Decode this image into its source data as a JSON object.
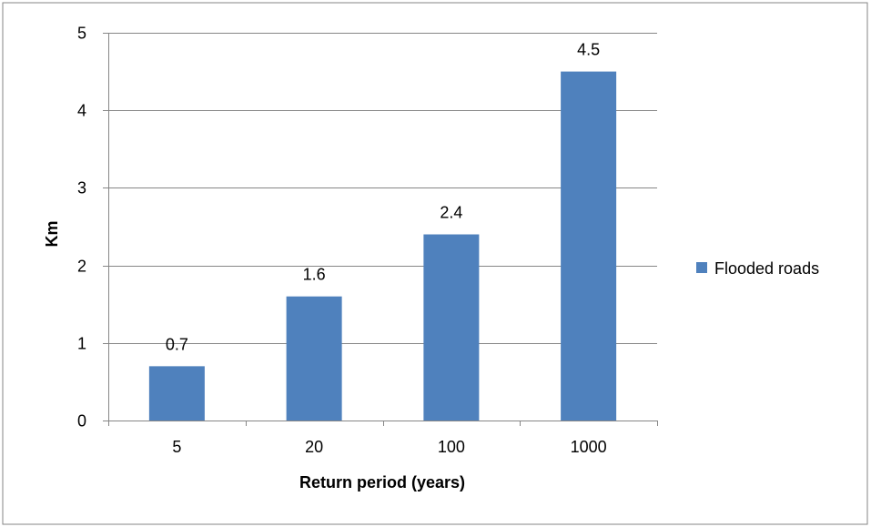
{
  "chart_data": {
    "type": "bar",
    "categories": [
      "5",
      "20",
      "100",
      "1000"
    ],
    "series": [
      {
        "name": "Flooded roads",
        "values": [
          0.7,
          1.6,
          2.4,
          4.5
        ],
        "color": "#4f81bd"
      }
    ],
    "data_labels": [
      "0.7",
      "1.6",
      "2.4",
      "4.5"
    ],
    "xlabel": "Return period (years)",
    "ylabel": "Km",
    "ylim": [
      0,
      5
    ],
    "yticks": [
      0,
      1,
      2,
      3,
      4,
      5
    ],
    "ytick_labels": [
      "0",
      "1",
      "2",
      "3",
      "4",
      "5"
    ],
    "grid": true,
    "gridline_color": "#868686",
    "legend": {
      "position": "right",
      "label": "Flooded roads"
    },
    "frame_color": "#868686"
  }
}
